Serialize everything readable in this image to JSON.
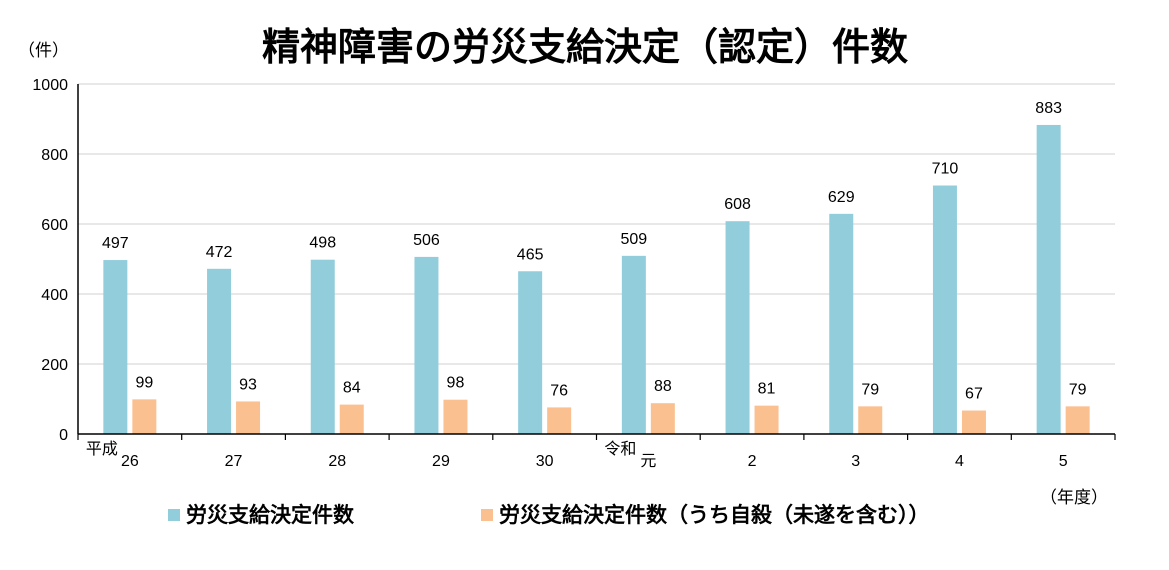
{
  "chart_data": {
    "type": "bar",
    "title": "精神障害の労災支給決定（認定）件数",
    "ylabel": "（件）",
    "xlabel": "（年度）",
    "ylim": [
      0,
      1000
    ],
    "yticks": [
      0,
      200,
      400,
      600,
      800,
      1000
    ],
    "categories": [
      "26",
      "27",
      "28",
      "29",
      "30",
      "元",
      "2",
      "3",
      "4",
      "5"
    ],
    "era_labels": [
      {
        "label": "平成",
        "category": "26"
      },
      {
        "label": "令和",
        "category": "元"
      }
    ],
    "grid": true,
    "legend_position": "bottom",
    "series": [
      {
        "name": "労災支給決定件数",
        "color": "#92CDDC",
        "values": [
          497,
          472,
          498,
          506,
          465,
          509,
          608,
          629,
          710,
          883
        ]
      },
      {
        "name": "労災支給決定件数（うち自殺（未遂を含む））",
        "color": "#FAC090",
        "values": [
          99,
          93,
          84,
          98,
          76,
          88,
          81,
          79,
          67,
          79
        ]
      }
    ]
  }
}
